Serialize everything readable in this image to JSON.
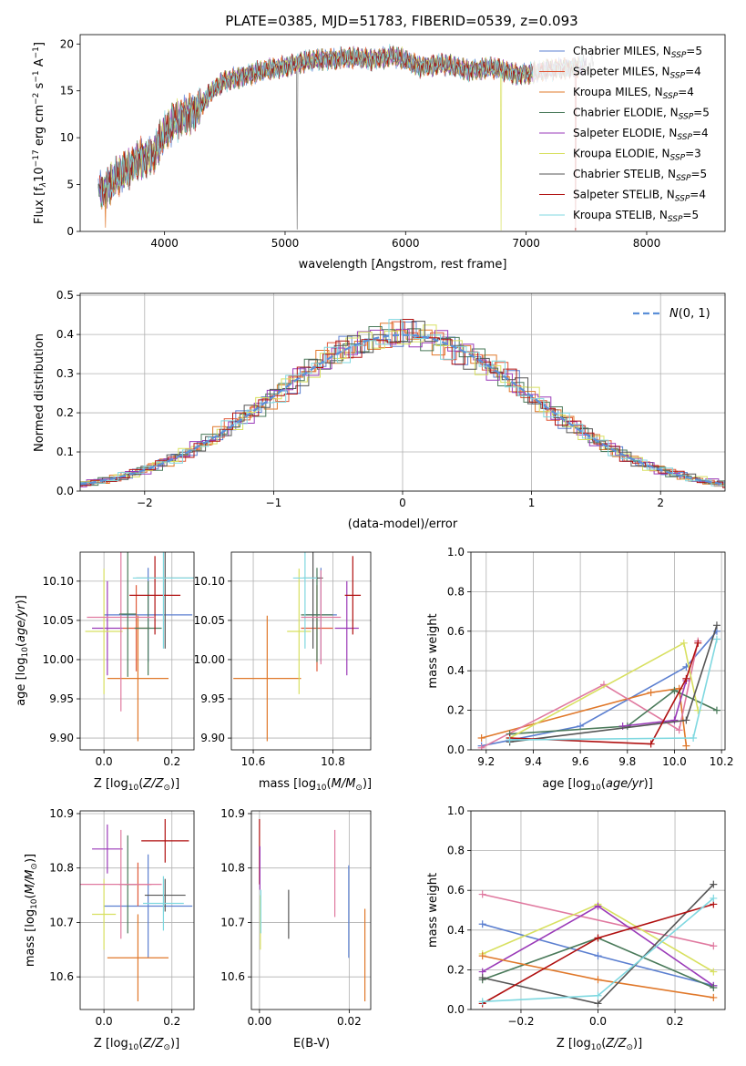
{
  "figure": {
    "title": "PLATE=0385, MJD=51783, FIBERID=0539, z=0.093"
  },
  "colors": {
    "chabrier_miles": "#5b7fd0",
    "salpeter_miles": "#e05a3a",
    "kroupa_miles": "#e0782a",
    "chabrier_elodie": "#4a7a5a",
    "salpeter_elodie": "#9a3ab8",
    "kroupa_elodie": "#d8e060",
    "chabrier_stelib": "#555555",
    "salpeter_stelib": "#b01010",
    "kroupa_stelib": "#7fd8e0",
    "pink": "#e07aa0",
    "gaussian": "#5b8fd8"
  },
  "chart_data": [
    {
      "id": "spectrum",
      "type": "line",
      "xlabel": "wavelength [Angstrom, rest frame]",
      "ylabel": "Flux [f",
      "ylabel_tail": "10",
      "ylabel_exp": "−17",
      "ylabel_units": "erg cm",
      "xlim": [
        3300,
        8650
      ],
      "ylim": [
        0,
        21
      ],
      "xticks": [
        "4000",
        "5000",
        "6000",
        "7000",
        "8000"
      ],
      "yticks": [
        "0",
        "5",
        "10",
        "15",
        "20"
      ],
      "x": [
        3500,
        3600,
        3700,
        3800,
        3900,
        4000,
        4100,
        4200,
        4300,
        4400,
        4500,
        4700,
        4900,
        5100,
        5300,
        5500,
        5700,
        5900,
        6100,
        6300,
        6500,
        6700,
        6900,
        7100,
        7300,
        7500
      ],
      "y": [
        4.5,
        5.8,
        6.5,
        7.8,
        8.2,
        10.5,
        11.8,
        12.5,
        13.5,
        15.0,
        16.0,
        16.8,
        17.3,
        18.0,
        18.3,
        18.6,
        18.3,
        18.8,
        17.6,
        17.9,
        17.2,
        17.5,
        16.8,
        17.0,
        17.4,
        17.8
      ],
      "legend": [
        {
          "label": "Chabrier MILES, N",
          "n": "5",
          "color_key": "chabrier_miles"
        },
        {
          "label": "Salpeter MILES, N",
          "n": "4",
          "color_key": "salpeter_miles"
        },
        {
          "label": "Kroupa MILES, N",
          "n": "4",
          "color_key": "kroupa_miles"
        },
        {
          "label": "Chabrier ELODIE, N",
          "n": "5",
          "color_key": "chabrier_elodie"
        },
        {
          "label": "Salpeter ELODIE, N",
          "n": "4",
          "color_key": "salpeter_elodie"
        },
        {
          "label": "Kroupa ELODIE, N",
          "n": "3",
          "color_key": "kroupa_elodie"
        },
        {
          "label": "Chabrier STELIB, N",
          "n": "5",
          "color_key": "chabrier_stelib"
        },
        {
          "label": "Salpeter STELIB, N",
          "n": "4",
          "color_key": "salpeter_stelib"
        },
        {
          "label": "Kroupa STELIB, N",
          "n": "5",
          "color_key": "kroupa_stelib"
        }
      ],
      "legend_sub": "SSP",
      "legend_placement": "upper-right"
    },
    {
      "id": "residuals",
      "type": "bar",
      "xlabel": "(data-model)/error",
      "ylabel": "Normed distribution",
      "xlim": [
        -2.5,
        2.5
      ],
      "ylim": [
        0,
        0.505
      ],
      "xticks": [
        "−2",
        "−1",
        "0",
        "1",
        "2"
      ],
      "yticks": [
        "0.0",
        "0.1",
        "0.2",
        "0.3",
        "0.4",
        "0.5"
      ],
      "grid": true,
      "gaussian_label": "(0, 1)",
      "legend_placement": "upper-right"
    },
    {
      "id": "age_vs_Z",
      "type": "scatter",
      "xlabel": "Z [log",
      "ylabel": "age  [log",
      "xlim": [
        -0.07,
        0.265
      ],
      "ylim": [
        9.885,
        10.137
      ],
      "xticks": [
        "0.0",
        "0.2"
      ],
      "yticks": [
        "9.90",
        "9.95",
        "10.00",
        "10.05",
        "10.10"
      ],
      "grid": true,
      "points": [
        {
          "x": 0.13,
          "y": 10.057,
          "xerr": 0.13,
          "yerr": 0.06,
          "c": "chabrier_miles"
        },
        {
          "x": 0.095,
          "y": 10.04,
          "xerr": 0.04,
          "yerr": 0.055,
          "c": "salpeter_miles"
        },
        {
          "x": 0.1,
          "y": 9.976,
          "xerr": 0.09,
          "yerr": 0.08,
          "c": "kroupa_miles"
        },
        {
          "x": 0.13,
          "y": 10.04,
          "xerr": 0.04,
          "yerr": 0.06,
          "c": "chabrier_elodie"
        },
        {
          "x": 0.01,
          "y": 10.04,
          "xerr": 0.045,
          "yerr": 0.06,
          "c": "salpeter_elodie"
        },
        {
          "x": 0.0,
          "y": 10.036,
          "xerr": 0.055,
          "yerr": 0.08,
          "c": "kroupa_elodie"
        },
        {
          "x": 0.18,
          "y": 10.104,
          "xerr": 0.085,
          "yerr": 0.09,
          "c": "chabrier_stelib"
        },
        {
          "x": 0.15,
          "y": 10.082,
          "xerr": 0.075,
          "yerr": 0.05,
          "c": "salpeter_stelib"
        },
        {
          "x": 0.175,
          "y": 10.104,
          "xerr": 0.09,
          "yerr": 0.09,
          "c": "kroupa_stelib"
        },
        {
          "x": 0.05,
          "y": 10.054,
          "xerr": 0.1,
          "yerr": 0.12,
          "c": "pink"
        },
        {
          "x": 0.07,
          "y": 10.058,
          "xerr": 0.025,
          "yerr": 0.08,
          "c": "chabrier_elodie"
        }
      ]
    },
    {
      "id": "age_vs_mass",
      "type": "scatter",
      "xlabel": "mass [log",
      "xlim": [
        10.545,
        10.895
      ],
      "ylim": [
        9.885,
        10.137
      ],
      "xticks": [
        "10.6",
        "10.8"
      ],
      "yticks": [
        "9.90",
        "9.95",
        "10.00",
        "10.05",
        "10.10"
      ],
      "grid": true,
      "points": [
        {
          "x": 10.77,
          "y": 10.057,
          "xerr": 0.04,
          "yerr": 0.06,
          "c": "chabrier_miles"
        },
        {
          "x": 10.76,
          "y": 10.04,
          "xerr": 0.04,
          "yerr": 0.055,
          "c": "salpeter_miles"
        },
        {
          "x": 10.635,
          "y": 9.976,
          "xerr": 0.085,
          "yerr": 0.08,
          "c": "kroupa_miles"
        },
        {
          "x": 10.76,
          "y": 10.057,
          "xerr": 0.04,
          "yerr": 0.06,
          "c": "chabrier_elodie"
        },
        {
          "x": 10.835,
          "y": 10.04,
          "xerr": 0.03,
          "yerr": 0.06,
          "c": "salpeter_elodie"
        },
        {
          "x": 10.715,
          "y": 10.036,
          "xerr": 0.03,
          "yerr": 0.08,
          "c": "kroupa_elodie"
        },
        {
          "x": 10.75,
          "y": 10.104,
          "xerr": 0.025,
          "yerr": 0.09,
          "c": "chabrier_stelib"
        },
        {
          "x": 10.85,
          "y": 10.082,
          "xerr": 0.02,
          "yerr": 0.05,
          "c": "salpeter_stelib"
        },
        {
          "x": 10.73,
          "y": 10.104,
          "xerr": 0.03,
          "yerr": 0.09,
          "c": "kroupa_stelib"
        },
        {
          "x": 10.77,
          "y": 10.054,
          "xerr": 0.05,
          "yerr": 0.06,
          "c": "pink"
        }
      ]
    },
    {
      "id": "massweight_vs_age",
      "type": "line",
      "xlabel": "age  [log",
      "ylabel": "mass weight",
      "xlim": [
        9.135,
        10.215
      ],
      "ylim": [
        0,
        1
      ],
      "xticks": [
        "9.2",
        "9.4",
        "9.6",
        "9.8",
        "10.0",
        "10.2"
      ],
      "yticks": [
        "0.0",
        "0.2",
        "0.4",
        "0.6",
        "0.8",
        "1.0"
      ],
      "grid": true,
      "series": [
        {
          "c": "chabrier_miles",
          "x": [
            9.18,
            9.6,
            10.05,
            10.18
          ],
          "y": [
            0.02,
            0.12,
            0.42,
            0.6
          ]
        },
        {
          "c": "kroupa_miles",
          "x": [
            9.18,
            9.9,
            10.02,
            10.05
          ],
          "y": [
            0.06,
            0.29,
            0.31,
            0.02
          ]
        },
        {
          "c": "pink",
          "x": [
            9.18,
            9.7,
            10.02,
            10.1
          ],
          "y": [
            0.01,
            0.33,
            0.1,
            0.55
          ]
        },
        {
          "c": "chabrier_elodie",
          "x": [
            9.3,
            9.8,
            10.0,
            10.18
          ],
          "y": [
            0.08,
            0.12,
            0.3,
            0.2
          ]
        },
        {
          "c": "salpeter_elodie",
          "x": [
            9.78,
            10.0,
            10.05
          ],
          "y": [
            0.12,
            0.15,
            0.35
          ]
        },
        {
          "c": "kroupa_elodie",
          "x": [
            9.3,
            10.04,
            10.1
          ],
          "y": [
            0.06,
            0.54,
            0.2
          ]
        },
        {
          "c": "chabrier_stelib",
          "x": [
            9.3,
            10.05,
            10.18
          ],
          "y": [
            0.04,
            0.15,
            0.63
          ]
        },
        {
          "c": "salpeter_stelib",
          "x": [
            9.3,
            9.9,
            10.05,
            10.1
          ],
          "y": [
            0.06,
            0.03,
            0.36,
            0.54
          ]
        },
        {
          "c": "kroupa_stelib",
          "x": [
            9.3,
            10.08,
            10.18
          ],
          "y": [
            0.05,
            0.06,
            0.56
          ]
        }
      ]
    },
    {
      "id": "mass_vs_Z",
      "type": "scatter",
      "xlabel": "Z [log",
      "ylabel": "mass [log",
      "xlim": [
        -0.07,
        0.265
      ],
      "ylim": [
        10.54,
        10.905
      ],
      "xticks": [
        "0.0",
        "0.2"
      ],
      "yticks": [
        "10.6",
        "10.7",
        "10.8",
        "10.9"
      ],
      "grid": true,
      "points": [
        {
          "x": 0.13,
          "y": 10.73,
          "xerr": 0.13,
          "yerr": 0.095,
          "c": "chabrier_miles"
        },
        {
          "x": 0.1,
          "y": 10.77,
          "xerr": 0.04,
          "yerr": 0.04,
          "c": "salpeter_miles"
        },
        {
          "x": 0.1,
          "y": 10.635,
          "xerr": 0.09,
          "yerr": 0.08,
          "c": "kroupa_miles"
        },
        {
          "x": 0.07,
          "y": 10.77,
          "xerr": 0.025,
          "yerr": 0.09,
          "c": "chabrier_elodie"
        },
        {
          "x": 0.01,
          "y": 10.835,
          "xerr": 0.045,
          "yerr": 0.045,
          "c": "salpeter_elodie"
        },
        {
          "x": 0.0,
          "y": 10.715,
          "xerr": 0.035,
          "yerr": 0.065,
          "c": "kroupa_elodie"
        },
        {
          "x": 0.18,
          "y": 10.75,
          "xerr": 0.06,
          "yerr": 0.03,
          "c": "chabrier_stelib"
        },
        {
          "x": 0.18,
          "y": 10.85,
          "xerr": 0.07,
          "yerr": 0.04,
          "c": "salpeter_stelib"
        },
        {
          "x": 0.175,
          "y": 10.735,
          "xerr": 0.06,
          "yerr": 0.05,
          "c": "kroupa_stelib"
        },
        {
          "x": 0.05,
          "y": 10.77,
          "xerr": 0.12,
          "yerr": 0.1,
          "c": "pink"
        }
      ]
    },
    {
      "id": "mass_vs_EBV",
      "type": "scatter",
      "xlabel": "E(B-V)",
      "xlim": [
        -0.0018,
        0.0248
      ],
      "ylim": [
        10.54,
        10.905
      ],
      "xticks": [
        "0.00",
        "0.02"
      ],
      "yticks": [
        "10.6",
        "10.7",
        "10.8",
        "10.9"
      ],
      "grid": true,
      "points": [
        {
          "x": 0.0,
          "y": 10.83,
          "xerr": 0,
          "yerr": 0.06,
          "c": "salpeter_stelib"
        },
        {
          "x": 0.0001,
          "y": 10.8,
          "xerr": 0,
          "yerr": 0.04,
          "c": "salpeter_elodie"
        },
        {
          "x": 0.0002,
          "y": 10.7,
          "xerr": 0,
          "yerr": 0.05,
          "c": "kroupa_elodie"
        },
        {
          "x": 0.0003,
          "y": 10.72,
          "xerr": 0,
          "yerr": 0.04,
          "c": "kroupa_stelib"
        },
        {
          "x": 0.0065,
          "y": 10.715,
          "xerr": 0,
          "yerr": 0.045,
          "c": "chabrier_stelib"
        },
        {
          "x": 0.0168,
          "y": 10.79,
          "xerr": 0,
          "yerr": 0.08,
          "c": "pink"
        },
        {
          "x": 0.0199,
          "y": 10.72,
          "xerr": 0,
          "yerr": 0.085,
          "c": "chabrier_miles"
        },
        {
          "x": 0.0235,
          "y": 10.64,
          "xerr": 0,
          "yerr": 0.085,
          "c": "kroupa_miles"
        }
      ]
    },
    {
      "id": "massweight_vs_Z",
      "type": "line",
      "xlabel": "Z [log",
      "ylabel": "mass weight",
      "xlim": [
        -0.33,
        0.33
      ],
      "ylim": [
        0,
        1
      ],
      "xticks": [
        "−0.2",
        "0.0",
        "0.2"
      ],
      "yticks": [
        "0.0",
        "0.2",
        "0.4",
        "0.6",
        "0.8",
        "1.0"
      ],
      "grid": true,
      "series": [
        {
          "c": "pink",
          "x": [
            -0.3,
            0.3
          ],
          "y": [
            0.58,
            0.32
          ]
        },
        {
          "c": "chabrier_miles",
          "x": [
            -0.3,
            0.0,
            0.3
          ],
          "y": [
            0.43,
            0.27,
            0.12
          ]
        },
        {
          "c": "kroupa_elodie",
          "x": [
            -0.3,
            0.0,
            0.3
          ],
          "y": [
            0.28,
            0.53,
            0.19
          ]
        },
        {
          "c": "salpeter_elodie",
          "x": [
            -0.3,
            0.0,
            0.3
          ],
          "y": [
            0.19,
            0.52,
            0.12
          ]
        },
        {
          "c": "chabrier_elodie",
          "x": [
            -0.3,
            0.0,
            0.3
          ],
          "y": [
            0.15,
            0.36,
            0.11
          ]
        },
        {
          "c": "kroupa_miles",
          "x": [
            -0.3,
            0.0,
            0.3
          ],
          "y": [
            0.27,
            0.15,
            0.06
          ]
        },
        {
          "c": "chabrier_stelib",
          "x": [
            -0.3,
            0.0,
            0.3
          ],
          "y": [
            0.16,
            0.03,
            0.63
          ]
        },
        {
          "c": "salpeter_stelib",
          "x": [
            -0.3,
            0.0,
            0.3
          ],
          "y": [
            0.03,
            0.36,
            0.53
          ]
        },
        {
          "c": "kroupa_stelib",
          "x": [
            -0.3,
            0.0,
            0.3
          ],
          "y": [
            0.04,
            0.07,
            0.56
          ]
        }
      ]
    }
  ]
}
